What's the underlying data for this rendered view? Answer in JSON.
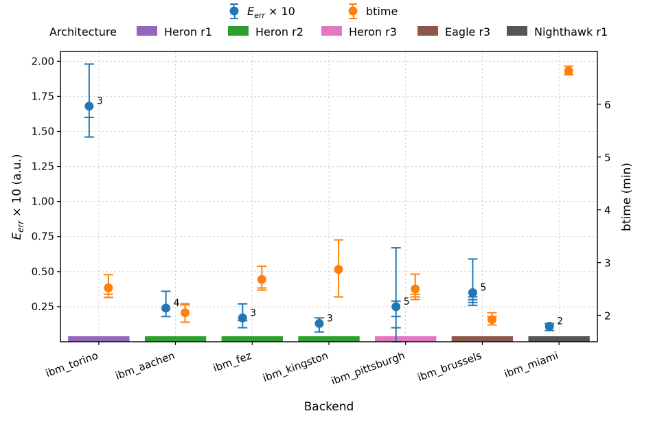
{
  "chart_data": {
    "type": "scatter",
    "xlabel": "Backend",
    "ylabel": "E_err × 10 (a.u.)",
    "ylabel_main": "E",
    "ylabel_sub": "err",
    "ylabel_rest": " × 10 (a.u.)",
    "y2label": "btime (min)",
    "ylim": [
      0,
      2.07
    ],
    "y2lim": [
      1.5,
      7.0
    ],
    "yticks": [
      "0.25",
      "0.50",
      "0.75",
      "1.00",
      "1.25",
      "1.50",
      "1.75",
      "2.00"
    ],
    "ytick_values": [
      0.25,
      0.5,
      0.75,
      1.0,
      1.25,
      1.5,
      1.75,
      2.0
    ],
    "y2ticks": [
      "2",
      "3",
      "4",
      "5",
      "6"
    ],
    "y2tick_values": [
      2,
      3,
      4,
      5,
      6
    ],
    "grid": true,
    "categories": [
      "ibm_torino",
      "ibm_aachen",
      "ibm_fez",
      "ibm_kingston",
      "ibm_pittsburgh",
      "ibm_brussels",
      "ibm_miami"
    ],
    "legend": {
      "placement": "top-center",
      "series_entries": [
        {
          "main": "E",
          "sub": "err",
          "rest": " × 10",
          "color": "#1f77b4"
        },
        {
          "main": "btime",
          "sub": "",
          "rest": "",
          "color": "#ff7f0e"
        }
      ],
      "architecture_title": "Architecture",
      "architectures": [
        {
          "name": "Heron r1",
          "color": "#9467bd"
        },
        {
          "name": "Heron r2",
          "color": "#2ca02c"
        },
        {
          "name": "Heron r3",
          "color": "#e377c2"
        },
        {
          "name": "Eagle r3",
          "color": "#8c564b"
        },
        {
          "name": "Nighthawk r1",
          "color": "#555555"
        }
      ]
    },
    "arch_by_backend": [
      "Heron r1",
      "Heron r2",
      "Heron r2",
      "Heron r2",
      "Heron r3",
      "Eagle r3",
      "Nighthawk r1"
    ],
    "series": [
      {
        "name": "E_err × 10",
        "color": "#1f77b4",
        "axis": "left",
        "values": [
          1.68,
          0.24,
          0.17,
          0.13,
          0.25,
          0.35,
          0.11
        ],
        "err_low": [
          1.46,
          0.18,
          0.1,
          0.07,
          0.0,
          0.26,
          0.08
        ],
        "err_high": [
          1.98,
          0.36,
          0.27,
          0.17,
          0.67,
          0.59,
          0.13
        ],
        "inner_caps": [
          [
            1.6
          ],
          [],
          [
            0.15
          ],
          [],
          [
            0.1,
            0.29,
            0.18
          ],
          [
            0.28,
            0.3,
            0.32
          ],
          []
        ],
        "annotations": [
          "3",
          "4",
          "3",
          "3",
          "5",
          "5",
          "2"
        ]
      },
      {
        "name": "btime",
        "color": "#ff7f0e",
        "axis": "right",
        "values": [
          2.52,
          2.05,
          2.68,
          2.87,
          2.5,
          1.92,
          6.63
        ],
        "err_low": [
          2.34,
          1.87,
          2.48,
          2.35,
          2.3,
          1.82,
          6.56
        ],
        "err_high": [
          2.77,
          2.2,
          2.93,
          3.43,
          2.78,
          2.05,
          6.72
        ],
        "inner_caps": [
          [
            2.4
          ],
          [
            2.22
          ],
          [
            2.52
          ],
          [],
          [
            2.4,
            2.35
          ],
          [
            1.98
          ],
          []
        ]
      }
    ]
  }
}
